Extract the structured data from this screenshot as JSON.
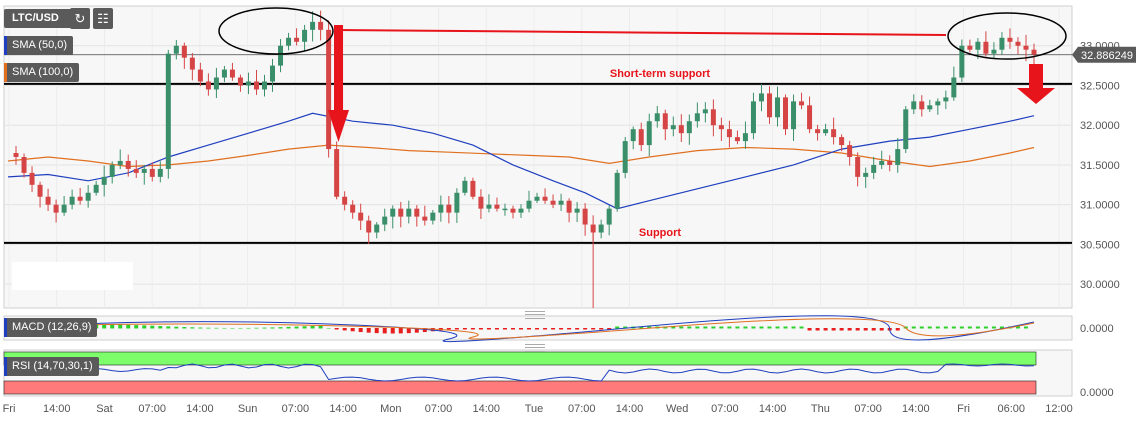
{
  "toolbar": {
    "symbol": "LTC/USD",
    "refresh_icon": "refresh-icon",
    "indicators_icon": "indicators-icon"
  },
  "legend": {
    "sma50": {
      "label": "SMA (50,0)",
      "color": "#1f3fbf"
    },
    "sma100": {
      "label": "SMA (100,0)",
      "color": "#e07020"
    },
    "macd": {
      "label": "MACD (12,26,9)"
    },
    "rsi": {
      "label": "RSI (14,70,30,1)"
    }
  },
  "colors": {
    "up": "#3a8f6a",
    "down": "#d64545",
    "annotation": "#e8141b",
    "level_line": "#000000",
    "rsi_overbought": "#7cff6a",
    "rsi_oversold": "#ff7a7a"
  },
  "chart_data": {
    "type": "candlestick",
    "title": "",
    "price_axis_ticks": [
      "33.0000",
      "32.5000",
      "32.0000",
      "31.5000",
      "31.0000",
      "30.5000",
      "30.0000"
    ],
    "ylim": [
      29.7,
      33.5
    ],
    "current_price": "32.886249",
    "levels": [
      {
        "name": "Short-term support",
        "value": 32.52
      },
      {
        "name": "Support",
        "value": 30.52
      }
    ],
    "time_axis_labels": [
      "Fri",
      "14:00",
      "Sat",
      "07:00",
      "14:00",
      "Sun",
      "07:00",
      "14:00",
      "Mon",
      "07:00",
      "14:00",
      "Tue",
      "07:00",
      "14:00",
      "Wed",
      "07:00",
      "14:00",
      "Thu",
      "07:00",
      "14:00",
      "Fri",
      "06:00",
      "12:00"
    ],
    "close_path": [
      [
        0,
        31.65
      ],
      [
        1,
        31.6
      ],
      [
        2,
        31.4
      ],
      [
        3,
        31.25
      ],
      [
        4,
        31.1
      ],
      [
        5,
        31.0
      ],
      [
        6,
        30.9
      ],
      [
        7,
        31.0
      ],
      [
        8,
        31.1
      ],
      [
        9,
        31.05
      ],
      [
        10,
        31.15
      ],
      [
        11,
        31.25
      ],
      [
        12,
        31.35
      ],
      [
        13,
        31.5
      ],
      [
        14,
        31.55
      ],
      [
        15,
        31.45
      ],
      [
        16,
        31.4
      ],
      [
        17,
        31.45
      ],
      [
        18,
        31.35
      ],
      [
        19,
        31.45
      ],
      [
        20,
        32.9
      ],
      [
        21,
        33.0
      ],
      [
        22,
        32.85
      ],
      [
        23,
        32.7
      ],
      [
        24,
        32.55
      ],
      [
        25,
        32.45
      ],
      [
        26,
        32.6
      ],
      [
        27,
        32.7
      ],
      [
        28,
        32.6
      ],
      [
        29,
        32.5
      ],
      [
        30,
        32.55
      ],
      [
        31,
        32.45
      ],
      [
        32,
        32.55
      ],
      [
        33,
        32.75
      ],
      [
        34,
        33.0
      ],
      [
        35,
        33.1
      ],
      [
        36,
        33.05
      ],
      [
        37,
        33.2
      ],
      [
        38,
        33.3
      ],
      [
        39,
        33.2
      ],
      [
        40,
        31.7
      ],
      [
        41,
        31.1
      ],
      [
        42,
        31.0
      ],
      [
        43,
        30.9
      ],
      [
        44,
        30.8
      ],
      [
        45,
        30.65
      ],
      [
        46,
        30.75
      ],
      [
        47,
        30.85
      ],
      [
        48,
        30.95
      ],
      [
        49,
        30.85
      ],
      [
        50,
        30.95
      ],
      [
        51,
        30.85
      ],
      [
        52,
        30.8
      ],
      [
        53,
        30.9
      ],
      [
        54,
        31.0
      ],
      [
        55,
        30.9
      ],
      [
        56,
        31.15
      ],
      [
        57,
        31.3
      ],
      [
        58,
        31.1
      ],
      [
        59,
        30.95
      ],
      [
        60,
        31.0
      ],
      [
        61,
        30.95
      ],
      [
        62,
        30.95
      ],
      [
        63,
        30.9
      ],
      [
        64,
        30.95
      ],
      [
        65,
        31.05
      ],
      [
        66,
        31.1
      ],
      [
        67,
        31.05
      ],
      [
        68,
        31.0
      ],
      [
        69,
        31.05
      ],
      [
        70,
        30.9
      ],
      [
        71,
        30.95
      ],
      [
        72,
        30.75
      ],
      [
        73,
        30.65
      ],
      [
        74,
        30.75
      ],
      [
        75,
        30.95
      ],
      [
        76,
        31.4
      ],
      [
        77,
        31.8
      ],
      [
        78,
        31.95
      ],
      [
        79,
        31.75
      ],
      [
        80,
        32.05
      ],
      [
        81,
        32.15
      ],
      [
        82,
        31.95
      ],
      [
        83,
        32.0
      ],
      [
        84,
        31.9
      ],
      [
        85,
        32.05
      ],
      [
        86,
        32.15
      ],
      [
        87,
        32.2
      ],
      [
        88,
        32.0
      ],
      [
        89,
        31.95
      ],
      [
        90,
        31.85
      ],
      [
        91,
        31.8
      ],
      [
        92,
        31.9
      ],
      [
        93,
        32.3
      ],
      [
        94,
        32.4
      ],
      [
        95,
        32.1
      ],
      [
        96,
        32.35
      ],
      [
        97,
        31.95
      ],
      [
        98,
        32.3
      ],
      [
        99,
        32.25
      ],
      [
        100,
        31.95
      ],
      [
        101,
        31.9
      ],
      [
        102,
        31.95
      ],
      [
        103,
        31.85
      ],
      [
        104,
        31.75
      ],
      [
        105,
        31.6
      ],
      [
        106,
        31.35
      ],
      [
        107,
        31.4
      ],
      [
        108,
        31.5
      ],
      [
        109,
        31.55
      ],
      [
        110,
        31.5
      ],
      [
        111,
        31.7
      ],
      [
        112,
        32.2
      ],
      [
        113,
        32.3
      ],
      [
        114,
        32.2
      ],
      [
        115,
        32.25
      ],
      [
        116,
        32.3
      ],
      [
        117,
        32.35
      ],
      [
        118,
        32.6
      ],
      [
        119,
        33.0
      ],
      [
        120,
        32.95
      ],
      [
        121,
        33.05
      ],
      [
        122,
        32.9
      ],
      [
        123,
        32.95
      ],
      [
        124,
        33.1
      ],
      [
        125,
        33.05
      ],
      [
        126,
        33.0
      ],
      [
        127,
        32.95
      ],
      [
        128,
        32.89
      ]
    ],
    "sma50_path": [
      [
        0,
        31.35
      ],
      [
        5,
        31.38
      ],
      [
        10,
        31.3
      ],
      [
        15,
        31.4
      ],
      [
        20,
        31.6
      ],
      [
        25,
        31.75
      ],
      [
        30,
        31.9
      ],
      [
        35,
        32.05
      ],
      [
        38,
        32.15
      ],
      [
        43,
        32.05
      ],
      [
        48,
        32.0
      ],
      [
        53,
        31.9
      ],
      [
        58,
        31.75
      ],
      [
        63,
        31.5
      ],
      [
        68,
        31.3
      ],
      [
        72,
        31.15
      ],
      [
        76,
        30.95
      ],
      [
        80,
        31.05
      ],
      [
        86,
        31.2
      ],
      [
        92,
        31.35
      ],
      [
        98,
        31.5
      ],
      [
        104,
        31.7
      ],
      [
        110,
        31.8
      ],
      [
        115,
        31.85
      ],
      [
        120,
        31.95
      ],
      [
        125,
        32.05
      ],
      [
        128,
        32.12
      ]
    ],
    "sma100_path": [
      [
        0,
        31.55
      ],
      [
        5,
        31.6
      ],
      [
        10,
        31.55
      ],
      [
        15,
        31.48
      ],
      [
        20,
        31.5
      ],
      [
        25,
        31.55
      ],
      [
        30,
        31.62
      ],
      [
        35,
        31.7
      ],
      [
        40,
        31.75
      ],
      [
        45,
        31.72
      ],
      [
        50,
        31.68
      ],
      [
        55,
        31.66
      ],
      [
        60,
        31.64
      ],
      [
        65,
        31.62
      ],
      [
        70,
        31.6
      ],
      [
        75,
        31.52
      ],
      [
        80,
        31.6
      ],
      [
        86,
        31.68
      ],
      [
        92,
        31.72
      ],
      [
        98,
        31.7
      ],
      [
        104,
        31.65
      ],
      [
        110,
        31.55
      ],
      [
        115,
        31.48
      ],
      [
        120,
        31.55
      ],
      [
        125,
        31.65
      ],
      [
        128,
        31.72
      ]
    ],
    "macd_axis_label": "0.0000",
    "rsi_axis_label": "0.0000"
  }
}
